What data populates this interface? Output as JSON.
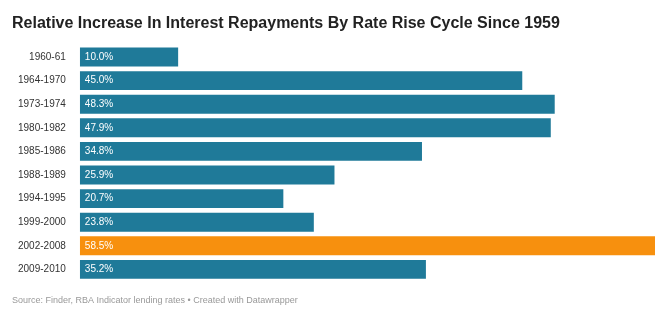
{
  "chart_data": {
    "type": "bar",
    "orientation": "horizontal",
    "title": "Relative Increase In Interest Repayments By Rate Rise Cycle Since 1959",
    "source": "Source: Finder, RBA Indicator lending rates • Created with Datawrapper",
    "categories": [
      "1960-61",
      "1964-1970",
      "1973-1974",
      "1980-1982",
      "1985-1986",
      "1988-1989",
      "1994-1995",
      "1999-2000",
      "2002-2008",
      "2009-2010"
    ],
    "values": [
      10.0,
      45.0,
      48.3,
      47.9,
      34.8,
      25.9,
      20.7,
      23.8,
      58.5,
      35.2
    ],
    "value_labels": [
      "10.0%",
      "45.0%",
      "48.3%",
      "47.9%",
      "34.8%",
      "25.9%",
      "20.7%",
      "23.8%",
      "58.5%",
      "35.2%"
    ],
    "colors": [
      "#1f7a99",
      "#1f7a99",
      "#1f7a99",
      "#1f7a99",
      "#1f7a99",
      "#1f7a99",
      "#1f7a99",
      "#1f7a99",
      "#f7900e",
      "#1f7a99"
    ],
    "xlim": [
      0,
      58.5
    ],
    "data_labels": true,
    "grid": false,
    "tick_labels": "y"
  }
}
